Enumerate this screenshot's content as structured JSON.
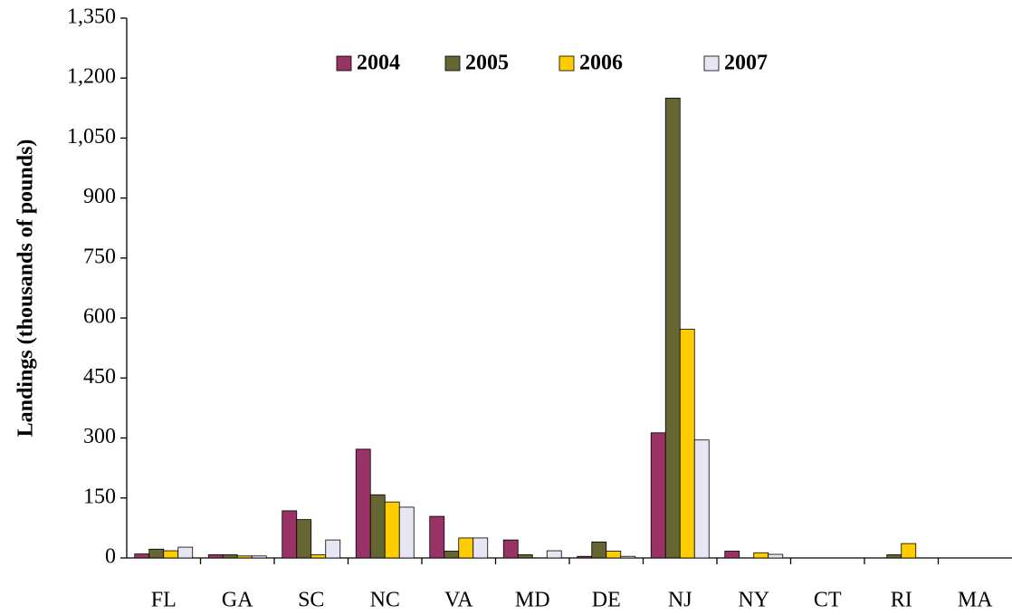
{
  "chart_data": {
    "type": "bar",
    "y_label": "Landings (thousands of pounds)",
    "categories": [
      "FL",
      "GA",
      "SC",
      "NC",
      "VA",
      "MD",
      "DE",
      "NJ",
      "NY",
      "CT",
      "RI",
      "MA"
    ],
    "series": [
      {
        "name": "2004",
        "color": "#993366",
        "values": [
          10,
          8,
          118,
          272,
          104,
          45,
          4,
          313,
          17,
          0,
          0,
          0
        ]
      },
      {
        "name": "2005",
        "color": "#666633",
        "values": [
          22,
          8,
          96,
          158,
          17,
          8,
          40,
          1150,
          0,
          0,
          8,
          0
        ]
      },
      {
        "name": "2006",
        "color": "#ffcc00",
        "values": [
          18,
          5,
          8,
          140,
          50,
          0,
          17,
          572,
          13,
          0,
          36,
          0
        ]
      },
      {
        "name": "2007",
        "color": "#e6e6f5",
        "values": [
          27,
          5,
          45,
          127,
          50,
          18,
          4,
          295,
          9,
          0,
          0,
          0
        ]
      }
    ],
    "ylim": [
      0,
      1350
    ],
    "yticks": [
      0,
      150,
      300,
      450,
      600,
      750,
      900,
      {
        "value": 1050,
        "label": "1,050"
      },
      {
        "value": 1200,
        "label": "1,200"
      },
      {
        "value": 1350,
        "label": "1,350"
      }
    ],
    "legend": "top",
    "grid": false
  }
}
